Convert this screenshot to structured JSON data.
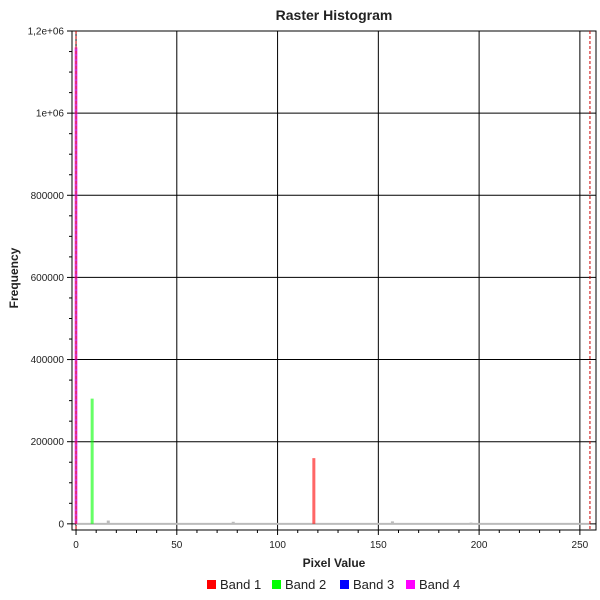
{
  "chart_data": {
    "type": "histogram",
    "title": "Raster Histogram",
    "xlabel": "Pixel Value",
    "ylabel": "Frequency",
    "xlim": [
      -2,
      258
    ],
    "ylim": [
      -15000,
      1200000
    ],
    "x_ticks": [
      {
        "value": 0,
        "label": "0"
      },
      {
        "value": 50,
        "label": "50"
      },
      {
        "value": 100,
        "label": "100"
      },
      {
        "value": 150,
        "label": "150"
      },
      {
        "value": 200,
        "label": "200"
      },
      {
        "value": 250,
        "label": "250"
      }
    ],
    "y_ticks": [
      {
        "value": 0,
        "label": "0"
      },
      {
        "value": 200000,
        "label": "200000"
      },
      {
        "value": 400000,
        "label": "400000"
      },
      {
        "value": 600000,
        "label": "600000"
      },
      {
        "value": 800000,
        "label": "800000"
      },
      {
        "value": 1000000,
        "label": "1e+06"
      },
      {
        "value": 1200000,
        "label": "1,2e+06"
      }
    ],
    "grid": true,
    "legend_position": "bottom",
    "series": [
      {
        "name": "Band 1",
        "color": "#ff0000",
        "bars": [
          {
            "x": 118,
            "y": 160000
          }
        ]
      },
      {
        "name": "Band 2",
        "color": "#00ff00",
        "bars": [
          {
            "x": 8,
            "y": 305000
          }
        ]
      },
      {
        "name": "Band 3",
        "color": "#0000ff",
        "bars": []
      },
      {
        "name": "Band 4",
        "color": "#ff00ff",
        "bars": [
          {
            "x": 0,
            "y": 1160000
          }
        ]
      }
    ],
    "minor_bars": [
      {
        "x": 16,
        "y": 8000
      },
      {
        "x": 78,
        "y": 5000
      },
      {
        "x": 157,
        "y": 6000
      },
      {
        "x": 196,
        "y": 3000
      }
    ],
    "reference_lines": [
      {
        "x": 0,
        "color": "#cc0000"
      },
      {
        "x": 255,
        "color": "#cc0000"
      }
    ]
  }
}
